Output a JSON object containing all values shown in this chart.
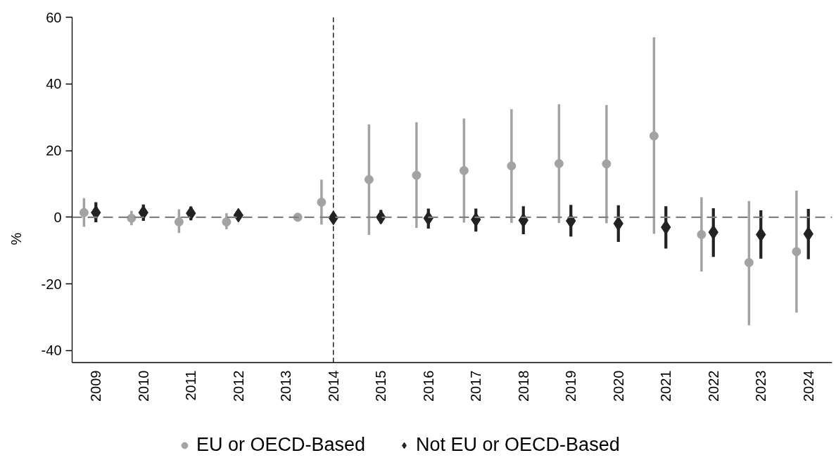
{
  "chart_data": {
    "type": "scatter",
    "ylabel": "%",
    "xlim": [
      2008.5,
      2024.5
    ],
    "xticks": [
      2009,
      2010,
      2011,
      2012,
      2013,
      2014,
      2015,
      2016,
      2017,
      2018,
      2019,
      2020,
      2021,
      2022,
      2023,
      2024
    ],
    "ylim": [
      -43.6,
      60
    ],
    "yticks": [
      -40,
      -20,
      0,
      20,
      40,
      60
    ],
    "legend": "bottom",
    "ref_lines": [
      {
        "axis": "y",
        "value": 0,
        "color": "#808080",
        "line_style": "dashed"
      },
      {
        "axis": "x",
        "value": 2014,
        "color": "#000000",
        "line_style": "dashed"
      }
    ],
    "series": [
      {
        "name": "EU or OECD-Based",
        "color": "#a3a3a3",
        "marker": "circle",
        "x": [
          2008.75,
          2009.75,
          2010.75,
          2011.75,
          2013.25,
          2013.75,
          2014.75,
          2015.75,
          2016.75,
          2017.75,
          2018.75,
          2019.75,
          2020.75,
          2021.75,
          2022.75,
          2023.75
        ],
        "values": [
          1.4,
          -0.3,
          -1.4,
          -1.4,
          0,
          4.5,
          11.3,
          12.6,
          14.0,
          15.4,
          16.1,
          16.0,
          24.4,
          -5.2,
          -13.6,
          -10.3
        ],
        "errors": [
          [
            -2.9,
            5.7
          ],
          [
            -2.4,
            1.9
          ],
          [
            -4.7,
            2.4
          ],
          [
            -3.6,
            1.2
          ],
          null,
          [
            -2.2,
            11.3
          ],
          [
            -5.3,
            27.9
          ],
          [
            -3.2,
            28.5
          ],
          [
            -1.6,
            29.6
          ],
          [
            -1.7,
            32.4
          ],
          [
            -1.7,
            33.9
          ],
          [
            -1.8,
            33.7
          ],
          [
            -5.0,
            54.0
          ],
          [
            -16.3,
            6.0
          ],
          [
            -32.4,
            4.9
          ],
          [
            -28.6,
            8.0
          ]
        ]
      },
      {
        "name": "Not EU or OECD-Based",
        "color": "#222222",
        "marker": "diamond",
        "x": [
          2009,
          2010,
          2011,
          2012,
          2014,
          2015,
          2016,
          2017,
          2018,
          2019,
          2020,
          2021,
          2022,
          2023,
          2024
        ],
        "values": [
          1.4,
          1.4,
          1.2,
          0.6,
          -0.2,
          0.0,
          -0.3,
          -0.7,
          -0.9,
          -1.1,
          -1.9,
          -3.0,
          -4.5,
          -5.2,
          -5.0
        ],
        "errors": [
          [
            -1.5,
            4.5
          ],
          [
            -1.1,
            3.8
          ],
          [
            -0.9,
            3.2
          ],
          null,
          null,
          [
            -1.8,
            2.2
          ],
          [
            -3.4,
            2.6
          ],
          [
            -4.3,
            2.6
          ],
          [
            -5.1,
            3.3
          ],
          [
            -5.8,
            3.7
          ],
          [
            -7.4,
            3.6
          ],
          [
            -9.4,
            3.3
          ],
          [
            -11.9,
            2.7
          ],
          [
            -12.4,
            2.1
          ],
          [
            -12.6,
            2.5
          ]
        ]
      }
    ]
  }
}
